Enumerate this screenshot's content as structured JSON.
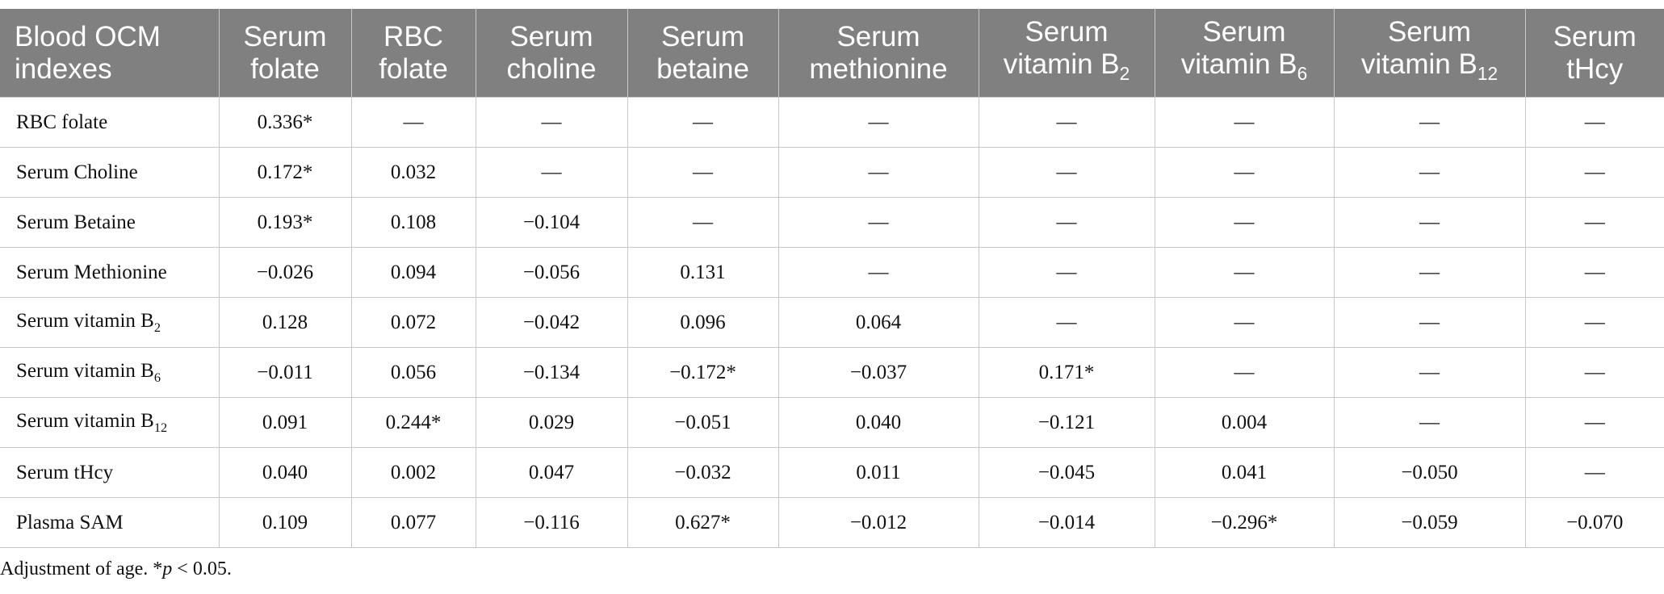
{
  "table": {
    "header": [
      {
        "lines": [
          "Blood OCM",
          "indexes"
        ]
      },
      {
        "lines": [
          "Serum",
          "folate"
        ]
      },
      {
        "lines": [
          "RBC",
          "folate"
        ]
      },
      {
        "lines": [
          "Serum",
          "choline"
        ]
      },
      {
        "lines": [
          "Serum",
          "betaine"
        ]
      },
      {
        "lines": [
          "Serum",
          "methionine"
        ]
      },
      {
        "lines": [
          "Serum",
          "vitamin B"
        ],
        "sub": "2"
      },
      {
        "lines": [
          "Serum",
          "vitamin B"
        ],
        "sub": "6"
      },
      {
        "lines": [
          "Serum",
          "vitamin B"
        ],
        "sub": "12"
      },
      {
        "lines": [
          "Serum",
          "tHcy"
        ]
      }
    ],
    "rows": [
      {
        "label": {
          "text": "RBC folate"
        },
        "cells": [
          "0.336*",
          "—",
          "—",
          "—",
          "—",
          "—",
          "—",
          "—",
          "—"
        ]
      },
      {
        "label": {
          "text": "Serum Choline"
        },
        "cells": [
          "0.172*",
          "0.032",
          "—",
          "—",
          "—",
          "—",
          "—",
          "—",
          "—"
        ]
      },
      {
        "label": {
          "text": "Serum Betaine"
        },
        "cells": [
          "0.193*",
          "0.108",
          "−0.104",
          "—",
          "—",
          "—",
          "—",
          "—",
          "—"
        ]
      },
      {
        "label": {
          "text": "Serum Methionine"
        },
        "cells": [
          "−0.026",
          "0.094",
          "−0.056",
          "0.131",
          "—",
          "—",
          "—",
          "—",
          "—"
        ]
      },
      {
        "label": {
          "text": "Serum vitamin B",
          "sub": "2"
        },
        "cells": [
          "0.128",
          "0.072",
          "−0.042",
          "0.096",
          "0.064",
          "—",
          "—",
          "—",
          "—"
        ]
      },
      {
        "label": {
          "text": "Serum vitamin B",
          "sub": "6"
        },
        "cells": [
          "−0.011",
          "0.056",
          "−0.134",
          "−0.172*",
          "−0.037",
          "0.171*",
          "—",
          "—",
          "—"
        ]
      },
      {
        "label": {
          "text": "Serum vitamin B",
          "sub": "12"
        },
        "cells": [
          "0.091",
          "0.244*",
          "0.029",
          "−0.051",
          "0.040",
          "−0.121",
          "0.004",
          "—",
          "—"
        ]
      },
      {
        "label": {
          "text": "Serum tHcy"
        },
        "cells": [
          "0.040",
          "0.002",
          "0.047",
          "−0.032",
          "0.011",
          "−0.045",
          "0.041",
          "−0.050",
          "—"
        ]
      },
      {
        "label": {
          "text": "Plasma SAM"
        },
        "cells": [
          "0.109",
          "0.077",
          "−0.116",
          "0.627*",
          "−0.012",
          "−0.014",
          "−0.296*",
          "−0.059",
          "−0.070"
        ]
      }
    ]
  },
  "footnote": {
    "before": "Adjustment of age. *",
    "italic": "p",
    "after": " < 0.05."
  }
}
